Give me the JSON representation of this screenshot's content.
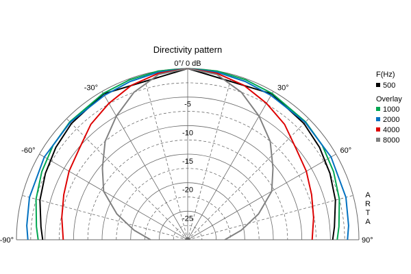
{
  "chart_data": {
    "type": "polar",
    "title": "Directivity pattern",
    "center_label": "0°/ 0 dB",
    "angle_labels": [
      "-90°",
      "-60°",
      "-30°",
      "30°",
      "60°",
      "90°"
    ],
    "angle_values": [
      -90,
      -60,
      -30,
      30,
      60,
      90
    ],
    "radial_labels": [
      "-5",
      "-10",
      "-15",
      "-20",
      "-25"
    ],
    "radial_values": [
      -5,
      -10,
      -15,
      -20,
      -25
    ],
    "rlim": [
      -30,
      0
    ],
    "grid": true,
    "legend_position": "right",
    "legend": {
      "header": "F(Hz)",
      "base": {
        "name": "500",
        "color": "#000000"
      },
      "overlay_header": "Overlay",
      "overlay": [
        {
          "name": "1000",
          "color": "#00a651"
        },
        {
          "name": "2000",
          "color": "#0070c0"
        },
        {
          "name": "4000",
          "color": "#dd0000"
        },
        {
          "name": "8000",
          "color": "#808080"
        }
      ]
    },
    "side_text": "ARTA",
    "series": [
      {
        "name": "500",
        "color": "#000000",
        "angles": [
          0,
          30,
          45,
          55,
          65,
          75,
          85,
          90
        ],
        "values": [
          0,
          -0.5,
          -1.2,
          -1.8,
          -2.5,
          -3.2,
          -4.2,
          -4.6
        ]
      },
      {
        "name": "1000",
        "color": "#00a651",
        "angles": [
          0,
          10,
          20,
          30,
          45,
          55,
          65,
          75,
          85,
          90
        ],
        "values": [
          0,
          0,
          -0.2,
          -0.4,
          -0.8,
          -1.2,
          -1.8,
          -2.5,
          -3.4,
          -3.8
        ]
      },
      {
        "name": "2000",
        "color": "#0070c0",
        "angles": [
          0,
          10,
          20,
          30,
          45,
          60,
          75,
          85,
          90
        ],
        "values": [
          0,
          -0.2,
          -0.5,
          -0.8,
          -0.9,
          -1.0,
          -1.3,
          -1.7,
          -2.0
        ]
      },
      {
        "name": "4000",
        "color": "#dd0000",
        "angles": [
          0,
          10,
          20,
          30,
          40,
          50,
          60,
          70,
          80,
          90
        ],
        "values": [
          0,
          -0.4,
          -1.2,
          -2.4,
          -3.6,
          -5.2,
          -6.0,
          -6.9,
          -7.6,
          -8.2
        ]
      },
      {
        "name": "8000",
        "color": "#808080",
        "angles": [
          0,
          10,
          20,
          30,
          40,
          50,
          60,
          70,
          80,
          90
        ],
        "values": [
          0,
          -0.6,
          -2.5,
          -5.0,
          -7.5,
          -10.5,
          -13.0,
          -16.8,
          -20.5,
          -23.5
        ]
      }
    ]
  }
}
